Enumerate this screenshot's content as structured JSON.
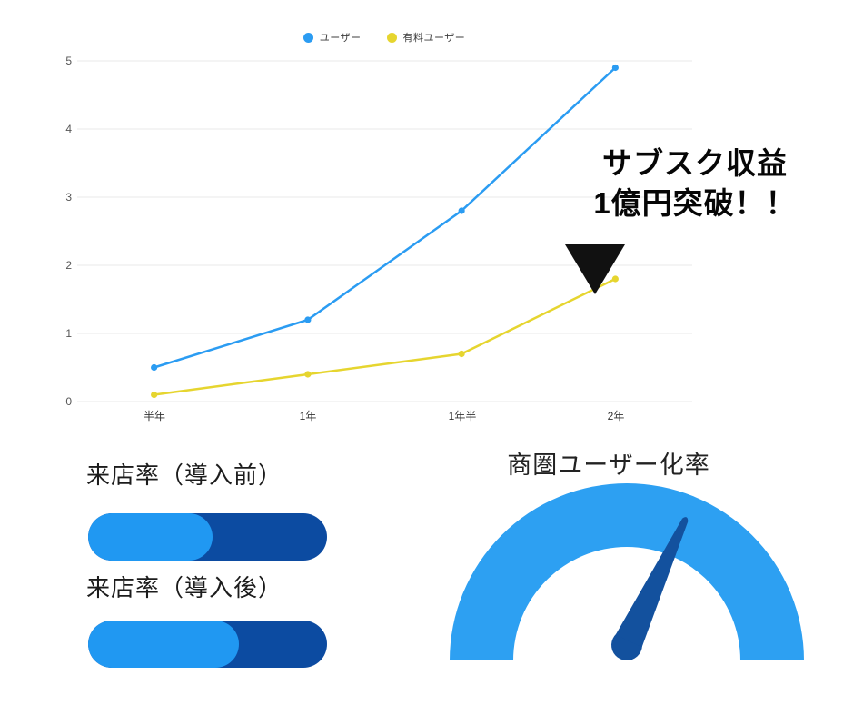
{
  "page": {
    "background": "#ffffff"
  },
  "chart_data": [
    {
      "type": "line",
      "title": "",
      "categories": [
        "半年",
        "1年",
        "1年半",
        "2年"
      ],
      "series": [
        {
          "name": "ユーザー",
          "color": "#2b9cf2",
          "values": [
            0.5,
            1.2,
            2.8,
            4.9
          ]
        },
        {
          "name": "有料ユーザー",
          "color": "#e6d52f",
          "values": [
            0.1,
            0.4,
            0.7,
            1.8
          ]
        }
      ],
      "yticks": [
        0,
        1,
        2,
        3,
        4,
        5
      ],
      "ylim": [
        0,
        5
      ],
      "grid": true,
      "legend_position": "top-center",
      "annotation": {
        "line1": "サブスク収益",
        "line2": "1億円突破！！",
        "marker": "black-down-triangle"
      }
    },
    {
      "type": "bar",
      "orientation": "horizontal",
      "items": [
        {
          "label": "来店率（導入前）",
          "value_pct": 52
        },
        {
          "label": "来店率（導入後）",
          "value_pct": 63
        }
      ],
      "fill_color": "#2098f2",
      "track_color": "#0c4ba1"
    },
    {
      "type": "gauge",
      "title": "商圏ユーザー化率",
      "needle_angle_deg": 25,
      "arc_color": "#2da0f2",
      "needle_color": "#13519e"
    }
  ],
  "colors": {
    "grid_line": "#e9e9e9",
    "axis_text": "#565656",
    "annotation_text": "#060606"
  }
}
